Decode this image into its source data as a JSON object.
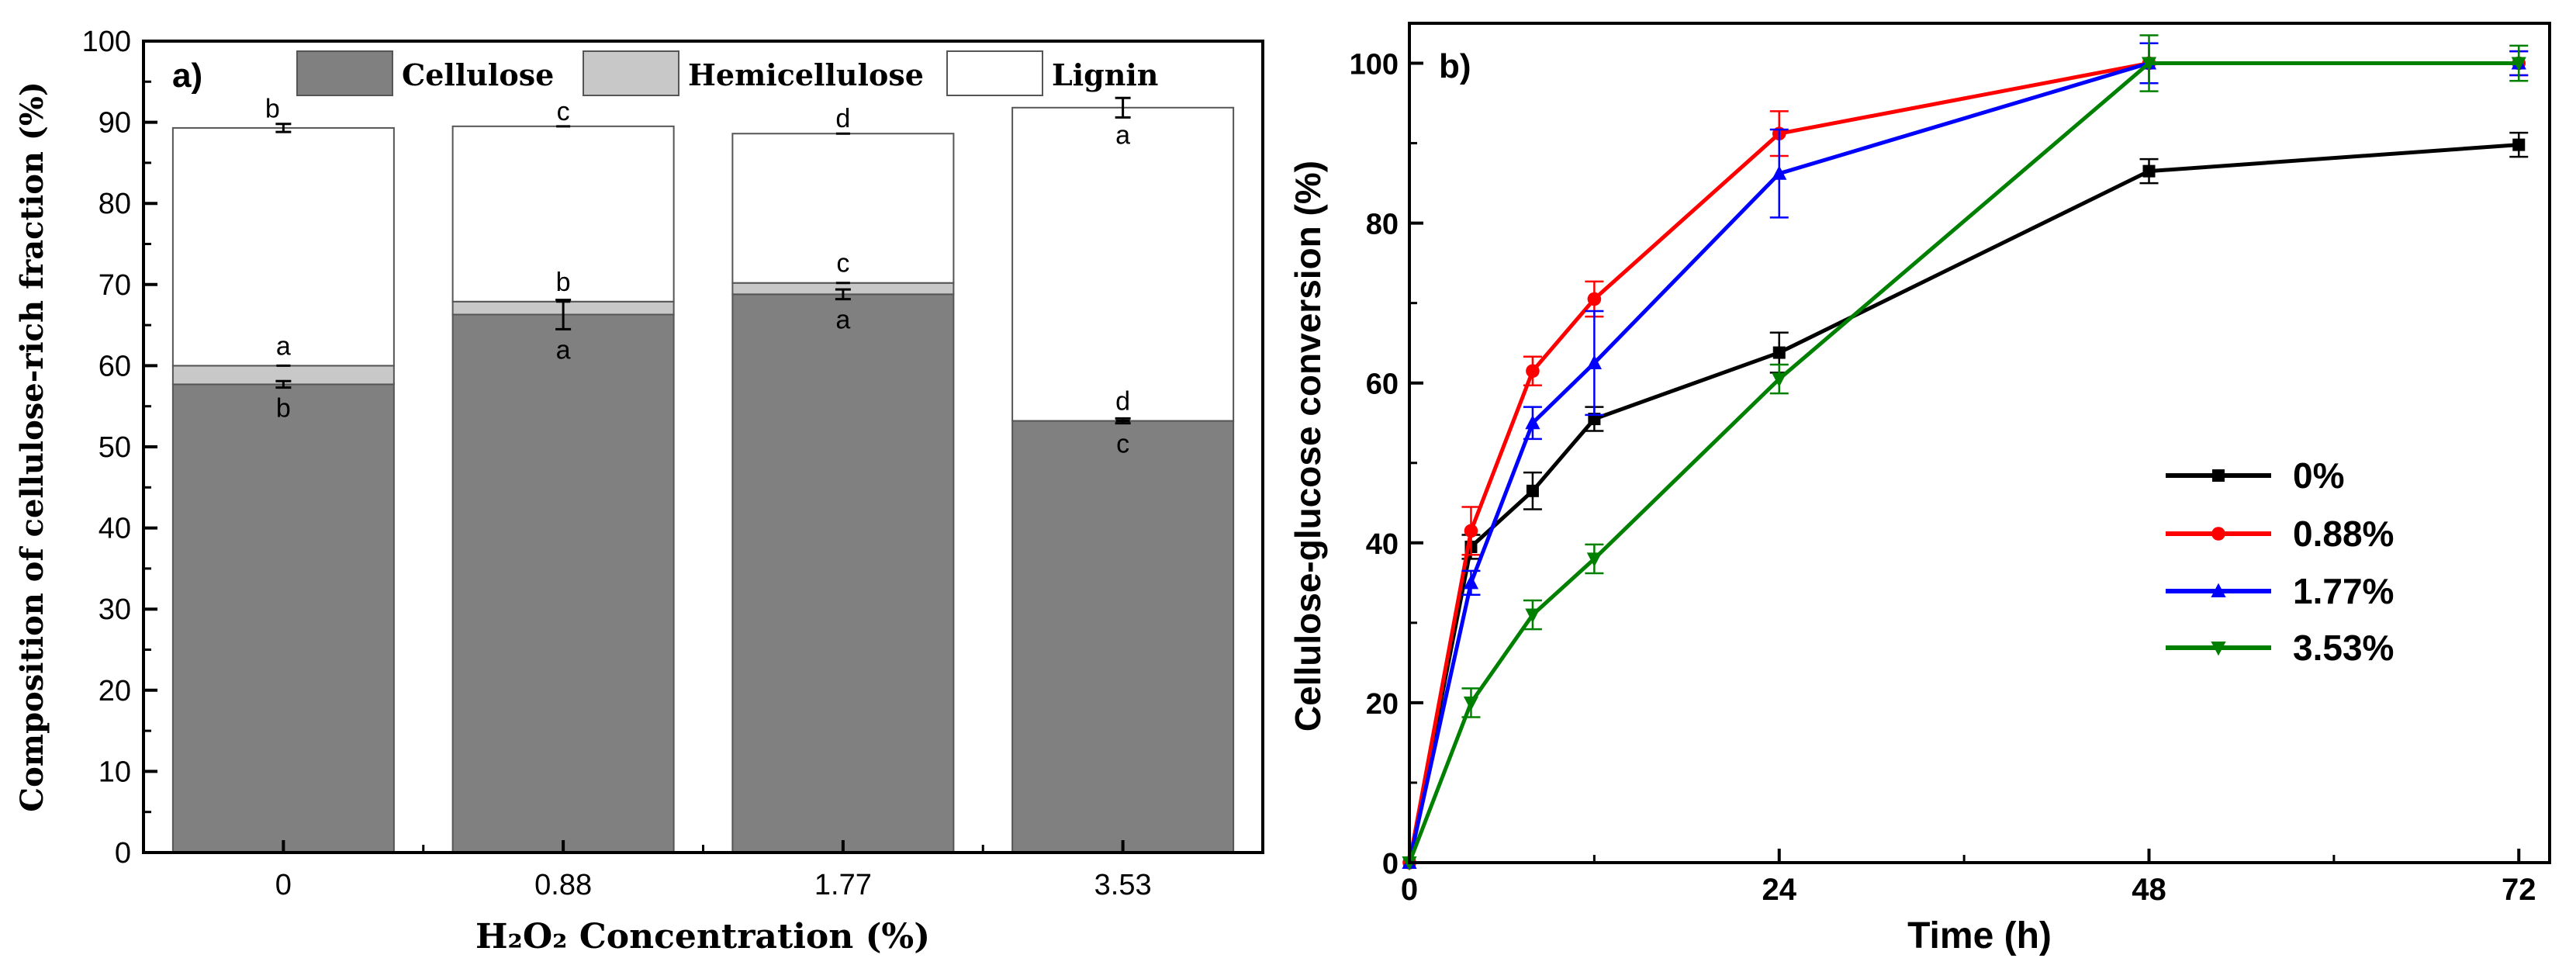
{
  "chart_data": [
    {
      "panel_label": "a)",
      "type": "bar",
      "stacked": true,
      "categories": [
        "0",
        "0.88",
        "1.77",
        "3.53"
      ],
      "xlabel": "H₂O₂ Concentration (%)",
      "ylabel": "Composition of cellulose-rich fraction (%)",
      "ylim": [
        0,
        100
      ],
      "yticks": [
        "0",
        "10",
        "20",
        "30",
        "40",
        "50",
        "60",
        "70",
        "80",
        "90",
        "100"
      ],
      "legend_position": "top",
      "series": [
        {
          "name": "Cellulose",
          "color": "#808080",
          "values": [
            57.7,
            66.3,
            68.8,
            53.2
          ],
          "errors": [
            0.4,
            1.8,
            0.6,
            0.3
          ],
          "labels": [
            "b",
            "a",
            "a",
            "c"
          ]
        },
        {
          "name": "Hemicellulose",
          "color": "#c8c8c8",
          "values": [
            2.3,
            1.6,
            1.4,
            0.0
          ],
          "errors": [
            0,
            0,
            0,
            0
          ],
          "labels": [
            "a",
            "b",
            "c",
            "d"
          ]
        },
        {
          "name": "Lignin",
          "color": "#ffffff",
          "values": [
            29.3,
            21.6,
            18.4,
            38.6
          ],
          "errors": [
            0.5,
            0,
            0,
            1.2
          ],
          "labels": [
            "b",
            "c",
            "d",
            "a"
          ]
        }
      ]
    },
    {
      "panel_label": "b)",
      "type": "line",
      "xlabel": "Time (h)",
      "ylabel": "Cellulose-glucose conversion (%)",
      "xlim": [
        0,
        74
      ],
      "ylim": [
        0,
        105
      ],
      "xticks": [
        "0",
        "24",
        "48",
        "72"
      ],
      "yticks": [
        "0",
        "20",
        "40",
        "60",
        "80",
        "100"
      ],
      "legend_position": "center-right",
      "x": [
        0,
        4,
        8,
        12,
        24,
        48,
        72
      ],
      "series": [
        {
          "name": "0%",
          "color": "#000000",
          "marker": "square",
          "values": [
            0,
            39.5,
            46.5,
            55.5,
            63.8,
            86.5,
            89.8
          ],
          "errors": [
            0,
            1.5,
            2.3,
            1.5,
            2.5,
            1.5,
            1.5
          ]
        },
        {
          "name": "0.88%",
          "color": "#ff0000",
          "marker": "circle",
          "values": [
            0,
            41.5,
            61.5,
            70.5,
            91.2,
            100,
            100
          ],
          "errors": [
            0,
            3.0,
            1.8,
            2.2,
            2.8,
            2.5,
            1.5
          ]
        },
        {
          "name": "1.77%",
          "color": "#0000ff",
          "marker": "triangle-up",
          "values": [
            0,
            35,
            55,
            62.5,
            86.2,
            100,
            100
          ],
          "errors": [
            0,
            1.5,
            2.0,
            6.5,
            5.5,
            2.5,
            1.5
          ]
        },
        {
          "name": "3.53%",
          "color": "#008000",
          "marker": "triangle-down",
          "values": [
            0,
            20,
            31,
            38,
            60.5,
            100,
            100
          ],
          "errors": [
            0,
            1.8,
            1.8,
            1.8,
            1.8,
            3.5,
            2.2
          ]
        }
      ]
    }
  ]
}
